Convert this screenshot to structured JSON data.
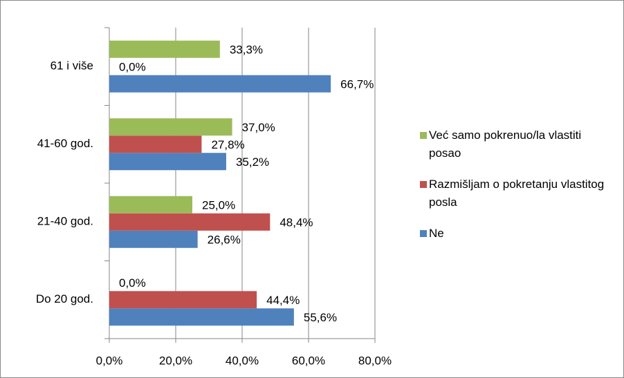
{
  "chart_data": {
    "type": "bar",
    "orientation": "horizontal",
    "categories": [
      "Do 20 god.",
      "21-40 god.",
      "41-60 god.",
      "61 i više"
    ],
    "series": [
      {
        "name": "Ne",
        "color": "#4f81bd",
        "values": [
          55.6,
          26.6,
          35.2,
          66.7
        ],
        "value_labels": [
          "55,6%",
          "26,6%",
          "35,2%",
          "66,7%"
        ]
      },
      {
        "name": "Razmišljam o pokretanju vlastitog posla",
        "color": "#c0504d",
        "values": [
          44.4,
          48.4,
          27.8,
          0.0
        ],
        "value_labels": [
          "44,4%",
          "48,4%",
          "27,8%",
          "0,0%"
        ]
      },
      {
        "name": "Već samo pokrenuo/la vlastiti posao",
        "color": "#9bbb59",
        "values": [
          0.0,
          25.0,
          37.0,
          33.3
        ],
        "value_labels": [
          "0,0%",
          "25,0%",
          "37,0%",
          "33,3%"
        ]
      }
    ],
    "xlim": [
      0,
      80
    ],
    "xticks": [
      {
        "value": 0,
        "label": "0,0%"
      },
      {
        "value": 20,
        "label": "20,0%"
      },
      {
        "value": 40,
        "label": "40,0%"
      },
      {
        "value": 60,
        "label": "60,0%"
      },
      {
        "value": 80,
        "label": "80,0%"
      }
    ],
    "grid": true,
    "legend": "right"
  }
}
